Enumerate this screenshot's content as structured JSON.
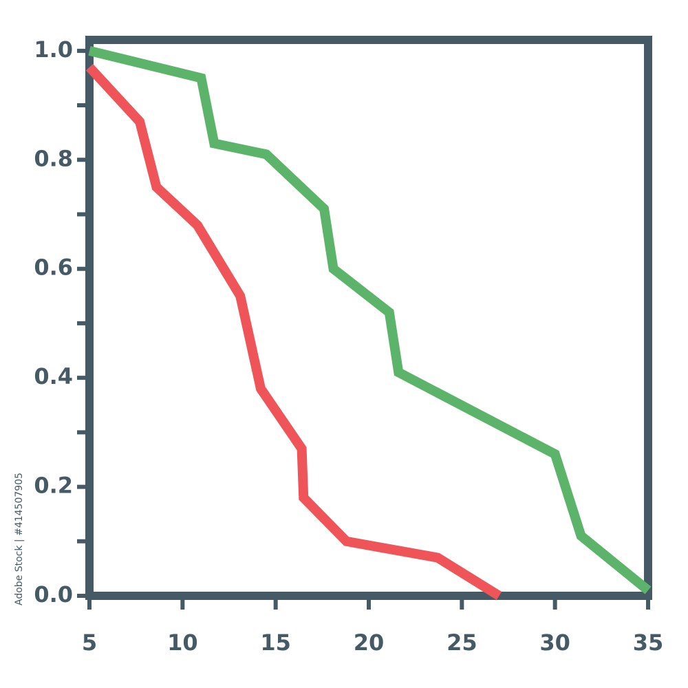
{
  "chart_data": {
    "type": "line",
    "xlim": [
      5,
      35
    ],
    "xticks": [
      5,
      10,
      15,
      20,
      25,
      30,
      35
    ],
    "ylim": [
      0,
      1.02
    ],
    "yticks": [
      {
        "value": 0,
        "label": "0.0"
      },
      0.2,
      0.4,
      0.6,
      0.8,
      {
        "value": 1,
        "label": "1.0"
      }
    ],
    "yminorticks": [
      0.1,
      0.3,
      0.5,
      0.7,
      0.9
    ],
    "frame_color": "#465a66",
    "series": [
      {
        "color": "#5cb46a",
        "x": [
          5,
          11.0,
          11.7,
          14.5,
          17.6,
          18.1,
          21.1,
          21.6,
          30.0,
          31.4,
          35
        ],
        "values": [
          1.0,
          0.95,
          0.83,
          0.81,
          0.71,
          0.6,
          0.52,
          0.41,
          0.26,
          0.11,
          0.01
        ]
      },
      {
        "color": "#ef5459",
        "x": [
          5,
          7.7,
          8.6,
          10.8,
          13.1,
          14.2,
          16.4,
          16.5,
          18.8,
          23.7,
          27.0
        ],
        "values": [
          0.97,
          0.87,
          0.75,
          0.68,
          0.55,
          0.38,
          0.27,
          0.18,
          0.1,
          0.07,
          0.0
        ]
      }
    ],
    "watermark": "Adobe Stock | #414507905"
  }
}
